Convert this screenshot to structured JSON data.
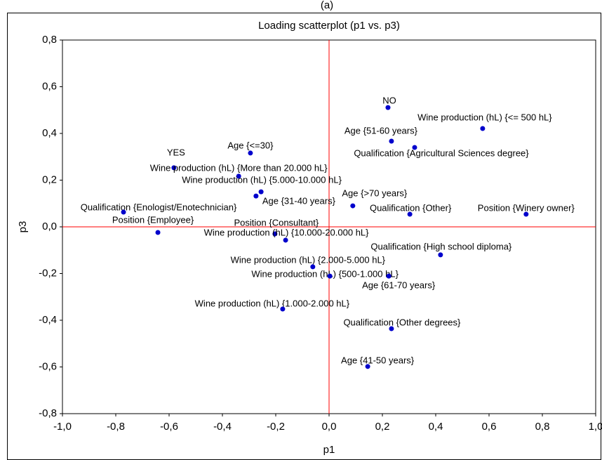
{
  "chart_data": {
    "type": "scatter",
    "panel_label": "(a)",
    "title": "Loading scatterplot (p1 vs. p3)",
    "xlabel": "p1",
    "ylabel": "p3",
    "xlim": [
      -1.0,
      1.0
    ],
    "ylim": [
      -0.8,
      0.8
    ],
    "xticks": [
      {
        "value": -1.0,
        "label": "-1,0"
      },
      {
        "value": -0.8,
        "label": "-0,8"
      },
      {
        "value": -0.6,
        "label": "-0,6"
      },
      {
        "value": -0.4,
        "label": "-0,4"
      },
      {
        "value": -0.2,
        "label": "-0,2"
      },
      {
        "value": 0.0,
        "label": "0,0"
      },
      {
        "value": 0.2,
        "label": "0,2"
      },
      {
        "value": 0.4,
        "label": "0,4"
      },
      {
        "value": 0.6,
        "label": "0,6"
      },
      {
        "value": 0.8,
        "label": "0,8"
      },
      {
        "value": 1.0,
        "label": "1,0"
      }
    ],
    "yticks": [
      {
        "value": -0.8,
        "label": "-0,8"
      },
      {
        "value": -0.6,
        "label": "-0,6"
      },
      {
        "value": -0.4,
        "label": "-0,4"
      },
      {
        "value": -0.2,
        "label": "-0,2"
      },
      {
        "value": 0.0,
        "label": "0,0"
      },
      {
        "value": 0.2,
        "label": "0,2"
      },
      {
        "value": 0.4,
        "label": "0,4"
      },
      {
        "value": 0.6,
        "label": "0,6"
      },
      {
        "value": 0.8,
        "label": "0,8"
      }
    ],
    "reference_line_color": "#ff0000",
    "color": "#0000cc",
    "labels": [
      "NO",
      "Wine production (hL) {<= 500 hL}",
      "Age {51-60 years}",
      "Qualification {Agricultural Sciences degree}",
      "Age {<=30}",
      "YES",
      "Wine production (hL) {More than 20.000 hL}",
      "Wine production (hL) {5.000-10.000 hL}",
      "Age {31-40 years}",
      "Age {>70 years}",
      "Qualification {Other}",
      "Position {Winery owner}",
      "Qualification {Enologist/Enotechnician}",
      "Position {Employee}",
      "Position {Consultant}",
      "Wine production (hL) {10.000-20.000 hL}",
      "Qualification {High school diploma}",
      "Wine production (hL) {2.000-5.000 hL}",
      "Wine production (hL) {500-1.000 hL}",
      "Age {61-70 years}",
      "Wine production (hL) {1.000-2.000 hL}",
      "Qualification {Other degrees}",
      "Age {41-50 years}"
    ],
    "x": [
      0.221,
      0.576,
      0.234,
      0.321,
      -0.295,
      -0.582,
      -0.339,
      -0.255,
      -0.274,
      0.089,
      0.303,
      0.739,
      -0.771,
      -0.642,
      -0.203,
      -0.163,
      0.418,
      -0.061,
      0.003,
      0.224,
      -0.174,
      0.234,
      0.145
    ],
    "values": [
      0.511,
      0.421,
      0.367,
      0.34,
      0.316,
      0.253,
      0.217,
      0.15,
      0.132,
      0.09,
      0.054,
      0.054,
      0.063,
      -0.024,
      -0.03,
      -0.057,
      -0.12,
      -0.171,
      -0.211,
      -0.211,
      -0.352,
      -0.436,
      -0.598
    ]
  }
}
